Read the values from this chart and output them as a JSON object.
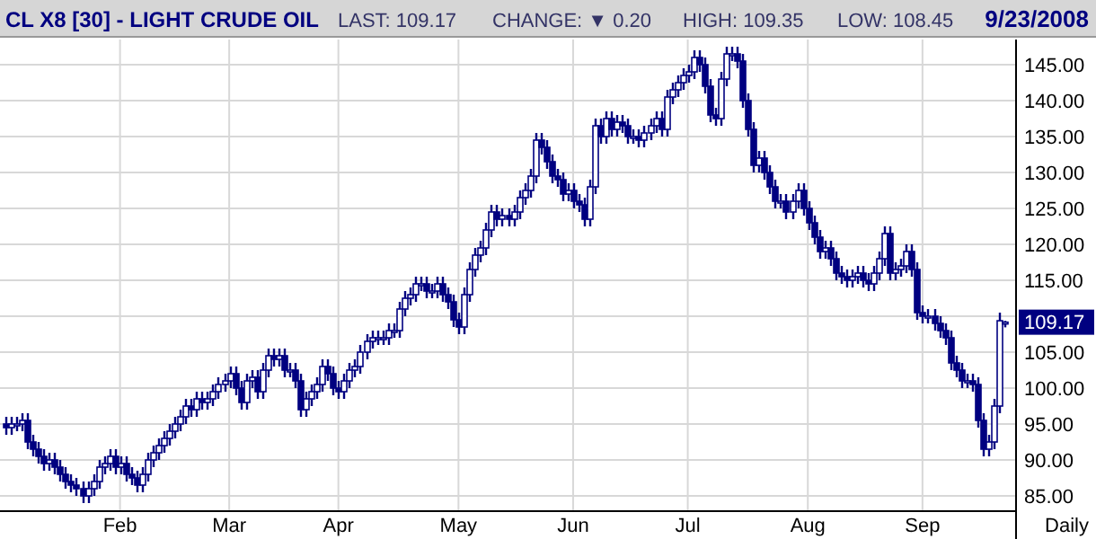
{
  "chart_data": {
    "type": "candlestick",
    "title": "CL X8 [30] - LIGHT CRUDE OIL",
    "annotations": [
      "LAST: 109.17",
      "CHANGE: ▼ 0.20",
      "HIGH: 109.35",
      "LOW: 108.45",
      "9/23/2008",
      {
        "text": "109.17",
        "y": 109.17
      },
      "Daily"
    ],
    "categories": [
      null,
      null,
      null,
      null,
      null,
      null,
      null,
      null,
      null,
      null,
      null,
      null,
      null,
      null,
      null,
      null,
      null,
      null,
      null,
      null,
      null,
      "Feb",
      null,
      null,
      null,
      null,
      null,
      null,
      null,
      null,
      null,
      null,
      null,
      null,
      null,
      null,
      null,
      null,
      null,
      null,
      null,
      "Mar",
      null,
      null,
      null,
      null,
      null,
      null,
      null,
      null,
      null,
      null,
      null,
      null,
      null,
      null,
      null,
      null,
      null,
      null,
      null,
      "Apr",
      null,
      null,
      null,
      null,
      null,
      null,
      null,
      null,
      null,
      null,
      null,
      null,
      null,
      null,
      null,
      null,
      null,
      null,
      null,
      null,
      null,
      "May",
      null,
      null,
      null,
      null,
      null,
      null,
      null,
      null,
      null,
      null,
      null,
      null,
      null,
      null,
      null,
      null,
      null,
      null,
      null,
      null,
      "Jun",
      null,
      null,
      null,
      null,
      null,
      null,
      null,
      null,
      null,
      null,
      null,
      null,
      null,
      null,
      null,
      null,
      null,
      null,
      null,
      null,
      "Jul",
      null,
      null,
      null,
      null,
      null,
      null,
      null,
      null,
      null,
      null,
      null,
      null,
      null,
      null,
      null,
      null,
      null,
      null,
      null,
      null,
      null,
      "Aug",
      null,
      null,
      null,
      null,
      null,
      null,
      null,
      null,
      null,
      null,
      null,
      null,
      null,
      null,
      null,
      null,
      null,
      null,
      null,
      null,
      "Sep",
      null,
      null,
      null,
      null,
      null,
      null,
      null,
      null,
      null,
      null,
      null,
      null,
      null,
      null,
      null
    ],
    "series": [
      {
        "color": "#000080",
        "ohlc": [
          [
            95,
            96,
            93.5,
            94.5
          ],
          [
            94.5,
            96,
            93.5,
            95
          ],
          [
            95,
            96,
            94,
            95
          ],
          [
            95,
            96.5,
            94,
            95.5
          ],
          [
            95.5,
            96.5,
            91.5,
            92.5
          ],
          [
            92.5,
            93.5,
            90.5,
            91.5
          ],
          [
            91.5,
            92.5,
            89.5,
            90.5
          ],
          [
            90.5,
            91.5,
            88.5,
            89.5
          ],
          [
            89.5,
            91,
            88.5,
            90
          ],
          [
            90,
            91,
            88,
            89
          ],
          [
            89,
            90,
            87,
            88
          ],
          [
            88,
            89,
            86,
            87
          ],
          [
            87,
            88,
            85.5,
            86.5
          ],
          [
            86.5,
            87.5,
            85,
            86
          ],
          [
            86,
            87,
            84,
            85
          ],
          [
            85,
            87,
            84,
            86
          ],
          [
            86,
            88,
            85,
            87
          ],
          [
            87,
            90,
            86,
            89
          ],
          [
            89,
            90.5,
            88,
            89.5
          ],
          [
            89.5,
            91.5,
            88.5,
            90.5
          ],
          [
            90.5,
            91.5,
            88,
            89
          ],
          [
            89,
            90.5,
            88,
            89.5
          ],
          [
            89.5,
            90.5,
            87,
            88
          ],
          [
            88,
            89,
            86.5,
            87.5
          ],
          [
            87.5,
            88.5,
            85.5,
            86.5
          ],
          [
            86.5,
            89,
            85.5,
            88
          ],
          [
            88,
            91,
            87,
            90
          ],
          [
            90,
            92,
            89,
            91
          ],
          [
            91,
            93,
            90,
            92
          ],
          [
            92,
            94,
            91,
            93
          ],
          [
            93,
            95,
            92,
            94
          ],
          [
            94,
            96,
            93,
            95
          ],
          [
            95,
            97,
            94,
            96
          ],
          [
            96,
            98.5,
            95,
            97.5
          ],
          [
            97.5,
            98.5,
            96,
            97
          ],
          [
            97,
            99.5,
            96,
            98.5
          ],
          [
            98.5,
            99.5,
            97,
            98
          ],
          [
            98,
            99.5,
            97,
            98.5
          ],
          [
            98.5,
            100.5,
            97.5,
            99.5
          ],
          [
            99.5,
            101.5,
            98.5,
            100.5
          ],
          [
            100.5,
            102,
            99.5,
            101
          ],
          [
            101,
            103,
            100,
            102
          ],
          [
            102,
            103,
            99,
            100
          ],
          [
            100,
            101,
            97,
            98
          ],
          [
            98,
            102,
            97,
            101
          ],
          [
            101,
            102.5,
            100,
            101.5
          ],
          [
            101.5,
            102.5,
            98.5,
            99.5
          ],
          [
            99.5,
            103.5,
            98.5,
            102.5
          ],
          [
            102.5,
            105.5,
            101.5,
            104.5
          ],
          [
            104.5,
            105.5,
            103,
            104
          ],
          [
            104,
            105.5,
            103,
            104.5
          ],
          [
            104.5,
            105.5,
            101.5,
            102.5
          ],
          [
            102.5,
            103.5,
            101.5,
            102.5
          ],
          [
            102.5,
            103.5,
            100,
            101
          ],
          [
            101,
            102,
            96,
            97
          ],
          [
            97,
            99.5,
            96,
            98.5
          ],
          [
            98.5,
            100.5,
            97.5,
            99.5
          ],
          [
            99.5,
            101.5,
            98.5,
            100.5
          ],
          [
            100.5,
            104,
            99.5,
            103
          ],
          [
            103,
            104,
            101,
            102
          ],
          [
            102,
            103,
            99,
            100
          ],
          [
            100,
            101,
            98.5,
            99.5
          ],
          [
            99.5,
            102,
            98.5,
            101
          ],
          [
            101,
            103.5,
            100,
            102.5
          ],
          [
            102.5,
            104,
            101.5,
            103
          ],
          [
            103,
            106,
            102,
            105
          ],
          [
            105,
            107.5,
            104,
            106.5
          ],
          [
            106.5,
            108,
            105.5,
            107
          ],
          [
            107,
            108,
            106,
            107
          ],
          [
            107,
            108,
            106,
            107
          ],
          [
            107,
            109,
            106,
            108
          ],
          [
            108,
            109,
            107,
            108
          ],
          [
            108,
            112,
            107,
            111
          ],
          [
            111,
            113.5,
            110,
            112.5
          ],
          [
            112.5,
            114,
            111.5,
            113
          ],
          [
            113,
            115.5,
            112,
            114.5
          ],
          [
            114.5,
            115.5,
            113.5,
            114.5
          ],
          [
            114.5,
            115.5,
            112.5,
            113.5
          ],
          [
            113.5,
            114.5,
            112.5,
            113.5
          ],
          [
            113.5,
            115.5,
            112.5,
            114.5
          ],
          [
            114.5,
            115.5,
            112,
            113
          ],
          [
            113,
            114,
            111,
            112
          ],
          [
            112,
            113,
            108.5,
            109.5
          ],
          [
            109.5,
            110.5,
            107.5,
            108.5
          ],
          [
            108.5,
            114,
            107.5,
            113
          ],
          [
            113,
            117.5,
            112,
            116.5
          ],
          [
            116.5,
            119.5,
            115.5,
            118.5
          ],
          [
            118.5,
            120.5,
            117.5,
            119.5
          ],
          [
            119.5,
            123,
            118.5,
            122
          ],
          [
            122,
            125.5,
            121,
            124.5
          ],
          [
            124.5,
            125.5,
            122.5,
            123.5
          ],
          [
            123.5,
            125,
            122.5,
            124
          ],
          [
            124,
            125,
            122.5,
            123.5
          ],
          [
            123.5,
            125.5,
            122.5,
            124.5
          ],
          [
            124.5,
            127.5,
            123.5,
            126.5
          ],
          [
            126.5,
            128.5,
            125.5,
            127.5
          ],
          [
            127.5,
            130.5,
            126.5,
            129.5
          ],
          [
            129.5,
            135.5,
            128.5,
            134.5
          ],
          [
            134.5,
            135.5,
            132.5,
            133.5
          ],
          [
            133.5,
            134.5,
            130.5,
            131.5
          ],
          [
            131.5,
            132.5,
            128.5,
            129.5
          ],
          [
            129.5,
            130.5,
            128,
            129
          ],
          [
            129,
            130,
            126,
            127
          ],
          [
            127,
            128.5,
            126,
            127.5
          ],
          [
            127.5,
            128.5,
            125,
            126
          ],
          [
            126,
            127,
            124.5,
            125.5
          ],
          [
            125.5,
            126.5,
            122.5,
            123.5
          ],
          [
            123.5,
            129,
            122.5,
            128
          ],
          [
            128,
            137.5,
            127,
            136.5
          ],
          [
            136.5,
            137.5,
            134,
            135
          ],
          [
            135,
            138.5,
            134,
            137.5
          ],
          [
            137.5,
            138.5,
            135,
            136
          ],
          [
            136,
            138,
            135,
            137
          ],
          [
            137,
            138,
            135.5,
            136.5
          ],
          [
            136.5,
            137.5,
            134,
            135
          ],
          [
            135,
            136,
            134,
            135
          ],
          [
            135,
            136,
            133.5,
            134.5
          ],
          [
            134.5,
            136.5,
            133.5,
            135.5
          ],
          [
            135.5,
            137.5,
            134.5,
            136.5
          ],
          [
            136.5,
            138.5,
            135.5,
            137.5
          ],
          [
            137.5,
            138.5,
            135,
            136
          ],
          [
            136,
            141.5,
            135,
            140.5
          ],
          [
            140.5,
            142.5,
            139.5,
            141.5
          ],
          [
            141.5,
            143.5,
            140.5,
            142.5
          ],
          [
            142.5,
            144.5,
            141.5,
            143.5
          ],
          [
            143.5,
            145,
            142.5,
            144
          ],
          [
            144,
            147,
            143,
            146
          ],
          [
            146,
            147,
            144,
            145
          ],
          [
            145,
            146,
            141,
            142
          ],
          [
            142,
            143,
            137,
            138
          ],
          [
            138,
            139,
            136.5,
            137.5
          ],
          [
            137.5,
            144,
            136.5,
            143
          ],
          [
            143,
            147.5,
            142,
            146.5
          ],
          [
            146.5,
            147.5,
            145.5,
            146.5
          ],
          [
            146.5,
            147.5,
            144.5,
            145.5
          ],
          [
            145.5,
            146.5,
            139,
            140
          ],
          [
            140,
            141,
            135,
            136
          ],
          [
            136,
            137,
            130,
            131
          ],
          [
            131,
            133,
            130,
            132
          ],
          [
            132,
            133,
            129,
            130
          ],
          [
            130,
            131,
            127,
            128
          ],
          [
            128,
            129,
            125,
            126
          ],
          [
            126,
            127,
            125,
            126
          ],
          [
            126,
            127,
            123.5,
            124.5
          ],
          [
            124.5,
            127,
            123.5,
            126
          ],
          [
            126,
            128.5,
            125,
            127.5
          ],
          [
            127.5,
            128.5,
            124,
            125
          ],
          [
            125,
            126,
            122,
            123
          ],
          [
            123,
            124,
            120,
            121
          ],
          [
            121,
            122,
            118,
            119
          ],
          [
            119,
            120.5,
            118,
            119.5
          ],
          [
            119.5,
            120.5,
            117,
            118
          ],
          [
            118,
            119,
            115,
            116
          ],
          [
            116,
            117,
            114.5,
            115.5
          ],
          [
            115.5,
            116.5,
            114,
            115
          ],
          [
            115,
            116.5,
            114,
            115.5
          ],
          [
            115.5,
            117,
            114.5,
            116
          ],
          [
            116,
            117,
            114,
            115
          ],
          [
            115,
            116,
            113.5,
            114.5
          ],
          [
            114.5,
            117,
            113.5,
            116
          ],
          [
            116,
            119,
            115,
            118
          ],
          [
            118,
            122.5,
            117,
            121.5
          ],
          [
            121.5,
            122.5,
            115,
            116
          ],
          [
            116,
            117.5,
            115,
            116.5
          ],
          [
            116.5,
            118,
            115.5,
            117
          ],
          [
            117,
            120,
            116,
            119
          ],
          [
            119,
            120,
            115.5,
            116.5
          ],
          [
            116.5,
            117.5,
            109.5,
            110.5
          ],
          [
            110.5,
            111.5,
            109,
            110
          ],
          [
            110,
            111,
            109,
            110
          ],
          [
            110,
            111,
            108,
            109
          ],
          [
            109,
            110,
            107,
            108
          ],
          [
            108,
            109,
            106,
            107
          ],
          [
            107,
            108,
            102.5,
            103.5
          ],
          [
            103.5,
            104.5,
            101.5,
            102.5
          ],
          [
            102.5,
            103.5,
            100,
            101
          ],
          [
            101,
            102,
            100,
            101
          ],
          [
            101,
            102,
            99.5,
            100.5
          ],
          [
            100.5,
            101.5,
            94.5,
            95.5
          ],
          [
            95.5,
            96.5,
            90.5,
            91.5
          ],
          [
            91.5,
            93.5,
            90.5,
            92.5
          ],
          [
            92.5,
            98.5,
            91.5,
            97.5
          ],
          [
            97.5,
            110.5,
            96.5,
            109.37
          ],
          [
            109,
            109.35,
            108.45,
            109.17
          ]
        ]
      }
    ],
    "ylim": [
      83,
      148.5
    ],
    "yticks": [
      {
        "value": 85,
        "label": "85.00"
      },
      {
        "value": 90,
        "label": "90.00"
      },
      {
        "value": 95,
        "label": "95.00"
      },
      {
        "value": 100,
        "label": "100.00"
      },
      {
        "value": 105,
        "label": "105.00"
      },
      {
        "value": 110,
        "label": null
      },
      {
        "value": 115,
        "label": "115.00"
      },
      {
        "value": 120,
        "label": "120.00"
      },
      {
        "value": 125,
        "label": "125.00"
      },
      {
        "value": 130,
        "label": "130.00"
      },
      {
        "value": 135,
        "label": "135.00"
      },
      {
        "value": 140,
        "label": "140.00"
      },
      {
        "value": 145,
        "label": "145.00"
      }
    ],
    "grid": true
  }
}
